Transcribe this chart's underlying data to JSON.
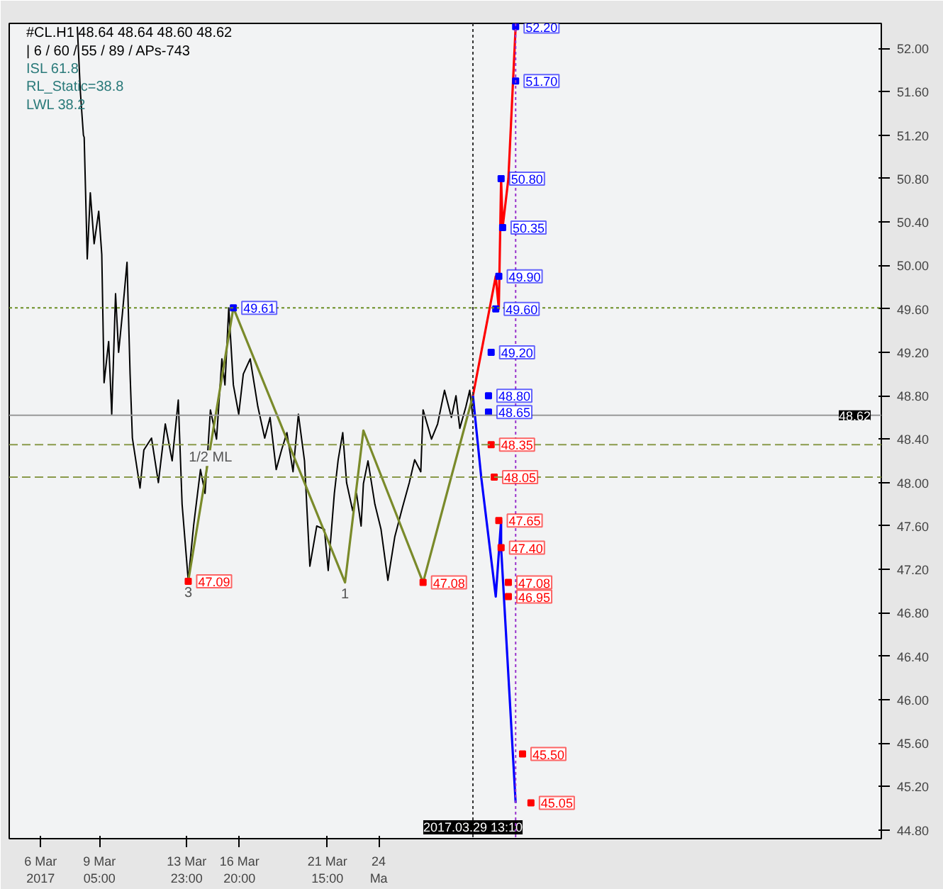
{
  "chart_data": {
    "type": "line",
    "title": "#CL.H1 48.64 48.64 48.60 48.62",
    "subtitle": "| 6 / 60 / 55 / 89 / APs-743",
    "xlim": [
      "2017-03-04T07:00",
      "2017-04-20T19:00"
    ],
    "ylim": [
      44.72,
      52.23
    ],
    "xticks": [
      {
        "value": "2017-03-06",
        "label": "6 Mar 2017"
      },
      {
        "value": "2017-03-09T05:00",
        "label": "9 Mar 05:00"
      },
      {
        "value": "2017-03-13T23:00",
        "label": "13 Mar 23:00"
      },
      {
        "value": "2017-03-16T20:00",
        "label": "16 Mar 20:00"
      },
      {
        "value": "2017-03-21T15:00",
        "label": "21 Mar 15:00"
      },
      {
        "value": "2017-03-24T10:00",
        "label": "24 Ma"
      }
    ],
    "yticks": [
      {
        "value": 44.8,
        "label": "44.80"
      },
      {
        "value": 45.2,
        "label": "45.20"
      },
      {
        "value": 45.6,
        "label": "45.60"
      },
      {
        "value": 46.0,
        "label": "46.00"
      },
      {
        "value": 46.4,
        "label": "46.40"
      },
      {
        "value": 46.8,
        "label": "46.80"
      },
      {
        "value": 47.2,
        "label": "47.20"
      },
      {
        "value": 47.6,
        "label": "47.60"
      },
      {
        "value": 48.0,
        "label": "48.00"
      },
      {
        "value": 48.4,
        "label": "48.40"
      },
      {
        "value": 48.8,
        "label": "48.80"
      },
      {
        "value": 49.2,
        "label": "49.20"
      },
      {
        "value": 49.6,
        "label": "49.60"
      },
      {
        "value": 50.0,
        "label": "50.00"
      },
      {
        "value": 50.4,
        "label": "50.40"
      },
      {
        "value": 50.8,
        "label": "50.80"
      },
      {
        "value": 51.2,
        "label": "51.20"
      },
      {
        "value": 51.6,
        "label": "51.60"
      },
      {
        "value": 52.0,
        "label": "52.00"
      }
    ],
    "grid": false,
    "marker": "none",
    "line_style": "solid",
    "series": [
      {
        "color": "#000000",
        "x": [
          "2017-03-08T00:00",
          "2017-03-08T04:00",
          "2017-03-08T08:00",
          "2017-03-08T09:00",
          "2017-03-08T13:00",
          "2017-03-08T17:00",
          "2017-03-08T22:00",
          "2017-03-09T04:00",
          "2017-03-09T08:00",
          "2017-03-09T11:00",
          "2017-03-09T17:00",
          "2017-03-09T21:00",
          "2017-03-10T02:00",
          "2017-03-10T06:00",
          "2017-03-10T11:00",
          "2017-03-10T17:00",
          "2017-03-10T21:00",
          "2017-03-11T00:00",
          "2017-03-11T10:00",
          "2017-03-11T15:00",
          "2017-03-12T01:00",
          "2017-03-12T10:00",
          "2017-03-12T19:00",
          "2017-03-13T04:00",
          "2017-03-13T12:00",
          "2017-03-13T17:00",
          "2017-03-14T01:00",
          "2017-03-14T08:00",
          "2017-03-14T17:00",
          "2017-03-14T23:00",
          "2017-03-15T06:00",
          "2017-03-15T14:00",
          "2017-03-15T21:00",
          "2017-03-16T01:00",
          "2017-03-16T06:00",
          "2017-03-16T12:00",
          "2017-03-16T19:00",
          "2017-03-17T01:00",
          "2017-03-17T10:00",
          "2017-03-17T20:00",
          "2017-03-18T05:00",
          "2017-03-18T12:00",
          "2017-03-18T20:00",
          "2017-03-19T03:00",
          "2017-03-19T10:00",
          "2017-03-19T18:00",
          "2017-03-20T01:00",
          "2017-03-20T09:00",
          "2017-03-20T16:00",
          "2017-03-21T01:00",
          "2017-03-21T11:00",
          "2017-03-21T16:00",
          "2017-03-22T00:00",
          "2017-03-22T05:00",
          "2017-03-22T11:00",
          "2017-03-22T16:00",
          "2017-03-23T00:00",
          "2017-03-23T05:00",
          "2017-03-23T11:00",
          "2017-03-23T14:00",
          "2017-03-23T20:00",
          "2017-03-24T05:00",
          "2017-03-24T13:00",
          "2017-03-24T22:00",
          "2017-03-25T07:00",
          "2017-03-25T17:00",
          "2017-03-26T02:00",
          "2017-03-26T09:00",
          "2017-03-26T17:00",
          "2017-03-26T20:00",
          "2017-03-27T07:00",
          "2017-03-27T15:00",
          "2017-03-28T00:00",
          "2017-03-28T09:00",
          "2017-03-28T15:00",
          "2017-03-28T20:00",
          "2017-03-29T04:00",
          "2017-03-29T09:00",
          "2017-03-29T13:10"
        ],
        "values": [
          52.2,
          51.6,
          51.2,
          51.18,
          50.06,
          50.67,
          50.2,
          50.5,
          50.1,
          48.92,
          49.3,
          48.63,
          49.74,
          49.2,
          49.56,
          50.03,
          49.0,
          48.41,
          47.95,
          48.3,
          48.41,
          48.0,
          48.54,
          48.2,
          48.76,
          47.8,
          47.1,
          47.6,
          48.12,
          47.9,
          48.67,
          48.4,
          49.14,
          48.9,
          49.61,
          48.9,
          48.63,
          49.0,
          49.14,
          48.7,
          48.41,
          48.6,
          48.12,
          48.3,
          48.46,
          48.1,
          48.63,
          48.2,
          47.23,
          47.6,
          47.57,
          47.19,
          47.9,
          48.21,
          48.46,
          48.0,
          47.74,
          47.9,
          47.6,
          47.99,
          48.2,
          47.8,
          47.57,
          47.1,
          47.5,
          47.77,
          48.0,
          48.21,
          48.1,
          48.67,
          48.4,
          48.54,
          48.85,
          48.6,
          48.8,
          48.5,
          48.7,
          48.85,
          48.6
        ]
      },
      {
        "color": "#7a8a2a",
        "x": [
          "2017-03-14T01:00",
          "2017-03-16T12:00",
          "2017-03-22T14:00",
          "2017-03-23T14:00",
          "2017-03-26T20:00",
          "2017-03-29T13:10"
        ],
        "values": [
          47.09,
          49.61,
          47.08,
          48.48,
          47.08,
          48.8
        ]
      },
      {
        "color": "#ff0000",
        "x": [
          "2017-03-29T13:10",
          "2017-03-30T19:00",
          "2017-03-30T23:00",
          "2017-03-31T02:00",
          "2017-03-31T04:00",
          "2017-03-31T11:30",
          "2017-03-31T21:00"
        ],
        "values": [
          48.8,
          49.9,
          49.6,
          50.8,
          50.35,
          50.8,
          52.2
        ]
      },
      {
        "color": "#0000ff",
        "x": [
          "2017-03-29T13:10",
          "2017-03-30T00:00",
          "2017-03-30T19:00",
          "2017-03-31T02:00",
          "2017-03-31T02:00",
          "2017-03-31T21:00"
        ],
        "values": [
          48.8,
          48.05,
          46.95,
          47.65,
          47.4,
          45.05
        ]
      },
      {
        "type": "scatter",
        "marker": "square",
        "color": "#0000ff",
        "x": [
          "2017-03-31T21:00",
          "2017-03-31T21:00",
          "2017-03-31T02:00",
          "2017-03-31T04:00",
          "2017-03-30T23:00",
          "2017-03-30T19:00",
          "2017-03-30T13:00",
          "2017-03-30T09:30",
          "2017-03-30T09:30",
          "2017-03-16T12:00"
        ],
        "values": [
          52.2,
          51.7,
          50.8,
          50.35,
          49.9,
          49.6,
          49.2,
          48.8,
          48.65,
          49.61
        ],
        "value_labels": [
          "52.20",
          "51.70",
          "50.80",
          "50.35",
          "49.90",
          "49.60",
          "49.20",
          "48.80",
          "48.65",
          "49.61"
        ]
      },
      {
        "type": "scatter",
        "marker": "square",
        "color": "#ff0000",
        "x": [
          "2017-03-30T13:00",
          "2017-03-30T17:00",
          "2017-03-30T23:00",
          "2017-03-31T02:00",
          "2017-03-31T11:30",
          "2017-03-31T11:30",
          "2017-04-01T06:00",
          "2017-04-01T17:00",
          "2017-03-14T01:00",
          "2017-03-26T20:00"
        ],
        "values": [
          48.35,
          48.05,
          47.65,
          47.4,
          47.08,
          46.95,
          45.5,
          45.05,
          47.09,
          47.08
        ],
        "value_labels": [
          "48.35",
          "48.05",
          "47.65",
          "47.40",
          "47.08",
          "46.95",
          "45.50",
          "45.05",
          "47.09",
          "47.08"
        ]
      }
    ],
    "ref_lines": [
      {
        "axis": "y",
        "value": 48.62,
        "label": "48.62",
        "color": "#999999",
        "line_style": "solid"
      },
      {
        "axis": "y",
        "value": 49.61,
        "label": null,
        "color": "#6b8e23",
        "line_style": "dotted"
      },
      {
        "axis": "y",
        "value": 48.35,
        "label": null,
        "color": "#8a9a4a",
        "line_style": "dashed"
      },
      {
        "axis": "y",
        "value": 48.05,
        "label": null,
        "color": "#8a9a4a",
        "line_style": "dashed"
      },
      {
        "axis": "x",
        "value": "2017-03-29T13:10",
        "label": "2017.03.29 13:10",
        "color": "#333333",
        "line_style": "dotted"
      },
      {
        "axis": "x",
        "value": "2017-03-31T21:00",
        "label": null,
        "color": "#9933cc",
        "line_style": "dotted"
      }
    ],
    "annotations": [
      "ISL 61.8",
      "RL_Static=38.8",
      "LWL 38.2",
      {
        "text": "3",
        "x": "2017-03-14T01:00",
        "y": 47.09
      },
      {
        "text": "1",
        "x": "2017-03-22T14:00",
        "y": 47.08
      },
      {
        "text": "1/2 ML",
        "x": "2017-03-15T06:00",
        "y": 48.35
      }
    ]
  }
}
